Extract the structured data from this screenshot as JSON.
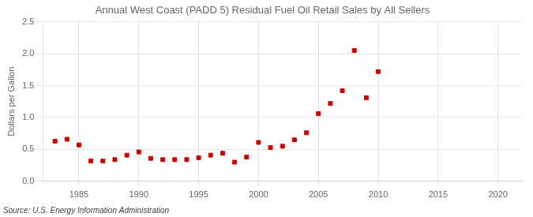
{
  "chart_data": {
    "type": "scatter",
    "title": "Annual West Coast (PADD 5) Residual Fuel Oil Retail Sales by All Sellers",
    "y_label": "Dollars per Gallon",
    "annotations": [
      "Source: U.S. Energy Information Administration"
    ],
    "x": [
      1983,
      1984,
      1985,
      1986,
      1987,
      1988,
      1989,
      1990,
      1991,
      1992,
      1993,
      1994,
      1995,
      1996,
      1997,
      1998,
      1999,
      2000,
      2001,
      2002,
      2003,
      2004,
      2005,
      2006,
      2007,
      2008,
      2009,
      2010
    ],
    "values": [
      0.63,
      0.66,
      0.57,
      0.32,
      0.32,
      0.34,
      0.41,
      0.46,
      0.36,
      0.34,
      0.34,
      0.34,
      0.37,
      0.41,
      0.44,
      0.3,
      0.38,
      0.61,
      0.53,
      0.55,
      0.65,
      0.76,
      1.06,
      1.22,
      1.42,
      2.05,
      1.31,
      1.72
    ],
    "color": "#cc0000",
    "marker": "square",
    "xlim": [
      1982,
      2022
    ],
    "xticks": [
      1985,
      1990,
      1995,
      2000,
      2005,
      2010,
      2015,
      2020
    ],
    "ylim": [
      0.0,
      2.5
    ],
    "yticks": [
      {
        "value": 0,
        "label": "0.0"
      },
      0.5,
      {
        "value": 1,
        "label": "1.0"
      },
      1.5,
      {
        "value": 2,
        "label": "2.0"
      },
      2.5
    ],
    "grid": true
  }
}
